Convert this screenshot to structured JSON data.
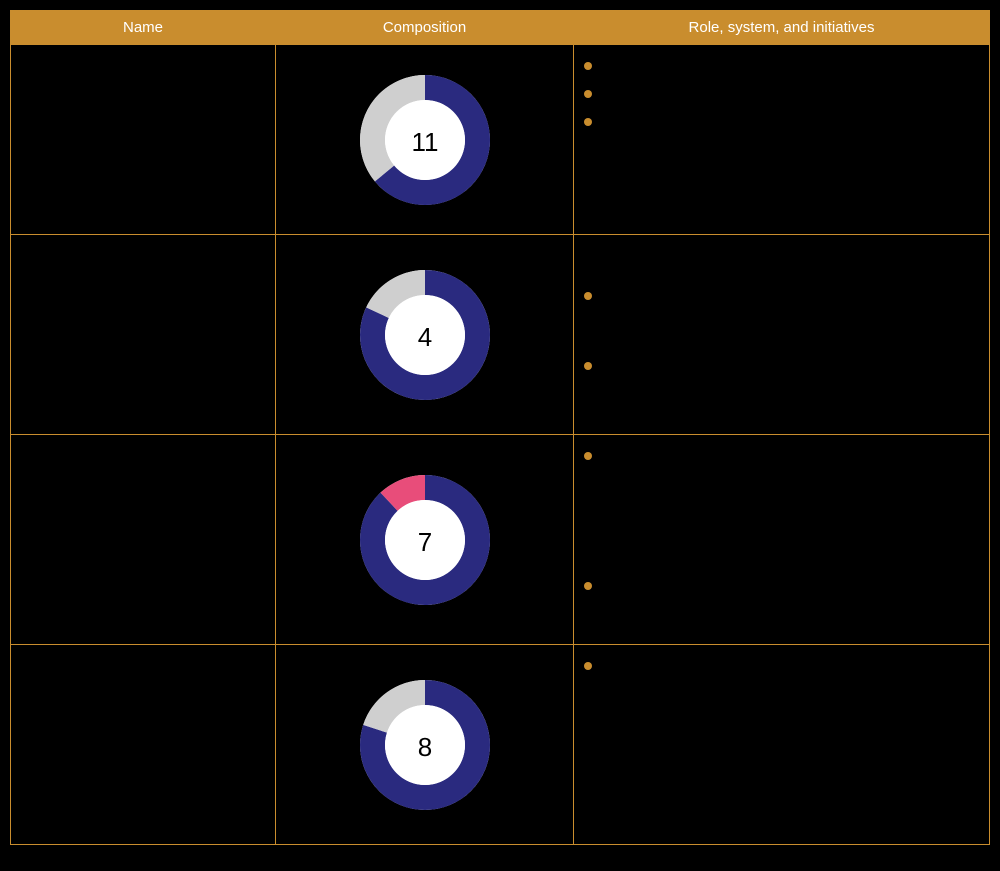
{
  "colors": {
    "header_bg": "#c98d2e",
    "header_text": "#ffffff",
    "border": "#c98d2e",
    "page_bg": "#000000",
    "donut_inner_bg": "#ffffff",
    "bullet": "#c98d2e",
    "segment_primary": "#2a2a7f",
    "segment_grey": "#cfcfcf",
    "segment_pink": "#e84d7a"
  },
  "headers": {
    "name": "Name",
    "composition": "Composition",
    "role": "Role, system, and initiatives"
  },
  "donut_style": {
    "outer_radius": 65,
    "inner_radius": 40,
    "center_fontsize": 26
  },
  "rows": [
    {
      "name": "",
      "center_value": "11",
      "segments": [
        {
          "color": "#2a2a7f",
          "fraction": 0.64
        },
        {
          "color": "#cfcfcf",
          "fraction": 0.36
        }
      ],
      "bullets": [
        "",
        "",
        ""
      ]
    },
    {
      "name": "",
      "center_value": "4",
      "segments": [
        {
          "color": "#2a2a7f",
          "fraction": 0.82
        },
        {
          "color": "#cfcfcf",
          "fraction": 0.18
        }
      ],
      "bullets": [
        "",
        ""
      ]
    },
    {
      "name": "",
      "center_value": "7",
      "segments": [
        {
          "color": "#2a2a7f",
          "fraction": 0.88
        },
        {
          "color": "#e84d7a",
          "fraction": 0.12
        }
      ],
      "bullets": [
        "",
        ""
      ]
    },
    {
      "name": "",
      "center_value": "8",
      "segments": [
        {
          "color": "#2a2a7f",
          "fraction": 0.8
        },
        {
          "color": "#cfcfcf",
          "fraction": 0.2
        }
      ],
      "bullets": [
        ""
      ]
    }
  ],
  "bullet_offsets": [
    [
      0,
      28,
      56
    ],
    [
      40,
      110
    ],
    [
      0,
      130
    ],
    [
      0
    ]
  ]
}
